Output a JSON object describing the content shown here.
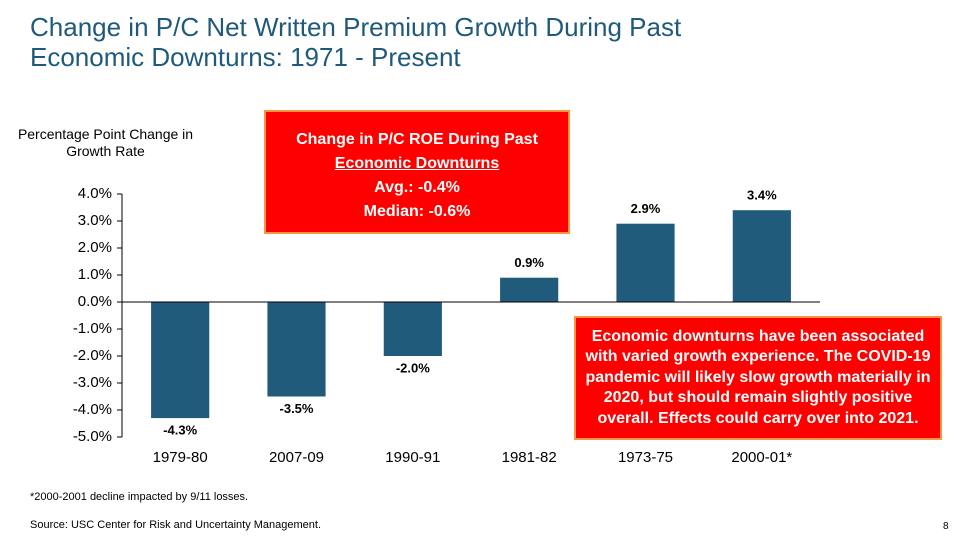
{
  "chart_data": {
    "type": "bar",
    "title": "Change in P/C Net Written Premium Growth During Past Economic Downturns: 1971 - Present",
    "ylabel": "Percentage Point Change in Growth Rate",
    "categories": [
      "1979-80",
      "2007-09",
      "1990-91",
      "1981-82",
      "1973-75",
      "2000-01*"
    ],
    "values": [
      -4.3,
      -3.5,
      -2.0,
      0.9,
      2.9,
      3.4
    ],
    "value_labels": [
      "-4.3%",
      "-3.5%",
      "-2.0%",
      "0.9%",
      "2.9%",
      "3.4%"
    ],
    "color": "#215b7c",
    "ylim": [
      -5,
      4
    ],
    "yticks": [
      {
        "value": 4,
        "label": "4.0%"
      },
      {
        "value": 3,
        "label": "3.0%"
      },
      {
        "value": 2,
        "label": "2.0%"
      },
      {
        "value": 1,
        "label": "1.0%"
      },
      {
        "value": 0,
        "label": "0.0%"
      },
      {
        "value": -1,
        "label": "-1.0%"
      },
      {
        "value": -2,
        "label": "-2.0%"
      },
      {
        "value": -3,
        "label": "-3.0%"
      },
      {
        "value": -4,
        "label": "-4.0%"
      },
      {
        "value": -5,
        "label": "-5.0%"
      }
    ],
    "grid": false,
    "roe_box": {
      "heading": [
        "Change in P/C ROE During Past",
        "Economic Downturns"
      ],
      "lines": [
        "Avg.: -0.4%",
        "Median: -0.6%"
      ]
    },
    "note_box": "Economic downturns have been associated with varied growth experience.  The COVID-19 pandemic will likely slow growth materially in 2020, but should remain slightly positive overall.  Effects could carry over into 2021.",
    "footnote": "*2000-2001 decline impacted by 9/11 losses.",
    "source": "Source: USC Center for Risk and Uncertainty Management.",
    "page_number": 8
  }
}
